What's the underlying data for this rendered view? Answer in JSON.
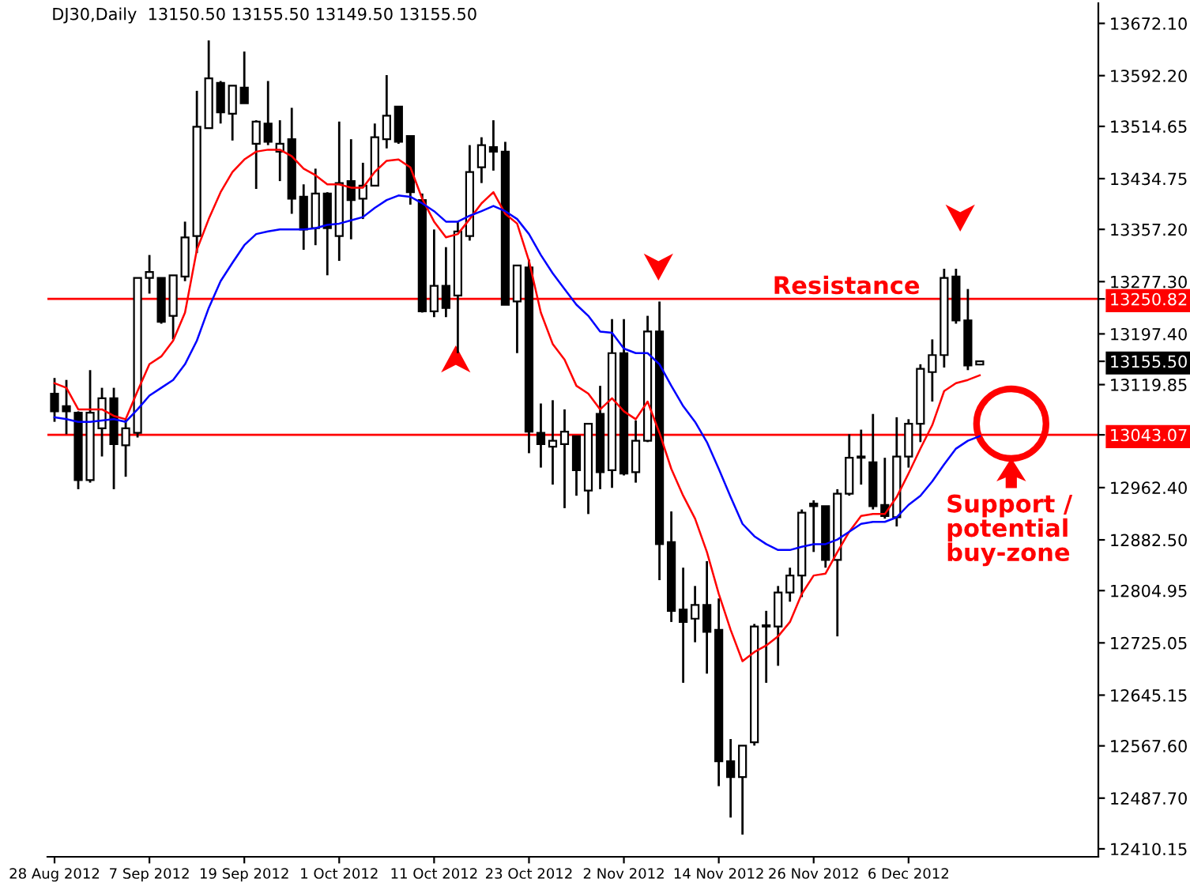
{
  "chart_data": {
    "type": "candlestick",
    "title": "DJ30,Daily  13150.50 13155.50 13149.50 13155.50",
    "categories": [
      "28 Aug 2012",
      null,
      null,
      null,
      null,
      null,
      null,
      null,
      "7 Sep 2012",
      null,
      null,
      null,
      null,
      null,
      null,
      null,
      "19 Sep 2012",
      null,
      null,
      null,
      null,
      null,
      null,
      null,
      "1 Oct 2012",
      null,
      null,
      null,
      null,
      null,
      null,
      null,
      "11 Oct 2012",
      null,
      null,
      null,
      null,
      null,
      null,
      null,
      "23 Oct 2012",
      null,
      null,
      null,
      null,
      null,
      null,
      null,
      "2 Nov 2012",
      null,
      null,
      null,
      null,
      null,
      null,
      null,
      "14 Nov 2012",
      null,
      null,
      null,
      null,
      null,
      null,
      null,
      "26 Nov 2012",
      null,
      null,
      null,
      null,
      null,
      null,
      null,
      "6 Dec 2012",
      null,
      null,
      null,
      null,
      null,
      null
    ],
    "ohlc": [
      [
        13106,
        13130,
        13063,
        13079
      ],
      [
        13087,
        13127,
        13044,
        13079
      ],
      [
        13077,
        13079,
        12960,
        12974
      ],
      [
        12974,
        13142,
        12970,
        13077
      ],
      [
        13053,
        13115,
        13010,
        13099
      ],
      [
        13099,
        13115,
        12960,
        13029
      ],
      [
        13027,
        13067,
        12979,
        13053
      ],
      [
        13046,
        13283,
        13039,
        13283
      ],
      [
        13283,
        13318,
        13259,
        13292
      ],
      [
        13283,
        13283,
        13213,
        13216
      ],
      [
        13225,
        13287,
        13189,
        13287
      ],
      [
        13285,
        13369,
        13278,
        13345
      ],
      [
        13347,
        13569,
        13321,
        13514
      ],
      [
        13512,
        13646,
        13512,
        13588
      ],
      [
        13581,
        13584,
        13519,
        13536
      ],
      [
        13534,
        13577,
        13493,
        13577
      ],
      [
        13574,
        13629,
        13550,
        13550
      ],
      [
        13488,
        13524,
        13419,
        13522
      ],
      [
        13519,
        13584,
        13486,
        13491
      ],
      [
        13476,
        13524,
        13431,
        13488
      ],
      [
        13495,
        13543,
        13381,
        13404
      ],
      [
        13407,
        13426,
        13326,
        13357
      ],
      [
        13359,
        13450,
        13333,
        13412
      ],
      [
        13412,
        13414,
        13287,
        13359
      ],
      [
        13347,
        13522,
        13309,
        13428
      ],
      [
        13431,
        13495,
        13342,
        13402
      ],
      [
        13404,
        13459,
        13373,
        13424
      ],
      [
        13424,
        13519,
        13424,
        13498
      ],
      [
        13495,
        13593,
        13481,
        13531
      ],
      [
        13545,
        13545,
        13488,
        13491
      ],
      [
        13500,
        13500,
        13395,
        13414
      ],
      [
        13402,
        13412,
        13230,
        13232
      ],
      [
        13232,
        13357,
        13223,
        13271
      ],
      [
        13271,
        13330,
        13223,
        13237
      ],
      [
        13256,
        13369,
        13168,
        13354
      ],
      [
        13347,
        13486,
        13340,
        13445
      ],
      [
        13452,
        13498,
        13428,
        13486
      ],
      [
        13483,
        13524,
        13447,
        13476
      ],
      [
        13476,
        13491,
        13242,
        13242
      ],
      [
        13247,
        13302,
        13168,
        13302
      ],
      [
        13299,
        13311,
        13015,
        13048
      ],
      [
        13046,
        13091,
        12993,
        13029
      ],
      [
        13025,
        13096,
        12967,
        13034
      ],
      [
        13029,
        13082,
        12931,
        13048
      ],
      [
        13041,
        13041,
        12950,
        12989
      ],
      [
        12958,
        13060,
        12922,
        13060
      ],
      [
        13075,
        13118,
        12960,
        12986
      ],
      [
        12989,
        13220,
        12962,
        13168
      ],
      [
        13168,
        13220,
        12981,
        12984
      ],
      [
        12986,
        13065,
        12970,
        13034
      ],
      [
        13034,
        13225,
        13032,
        13201
      ],
      [
        13201,
        13247,
        12821,
        12876
      ],
      [
        12879,
        12926,
        12757,
        12774
      ],
      [
        12776,
        12840,
        12664,
        12757
      ],
      [
        12762,
        12812,
        12726,
        12783
      ],
      [
        12783,
        12850,
        12678,
        12742
      ],
      [
        12745,
        12793,
        12506,
        12544
      ],
      [
        12544,
        12578,
        12458,
        12520
      ],
      [
        12520,
        12568,
        12432,
        12568
      ],
      [
        12573,
        12754,
        12568,
        12750
      ],
      [
        12750,
        12774,
        12664,
        12752
      ],
      [
        12750,
        12812,
        12690,
        12802
      ],
      [
        12802,
        12840,
        12788,
        12828
      ],
      [
        12828,
        12929,
        12795,
        12924
      ],
      [
        12938,
        12943,
        12864,
        12934
      ],
      [
        12934,
        12934,
        12840,
        12852
      ],
      [
        12852,
        12960,
        12735,
        12953
      ],
      [
        12953,
        13044,
        12950,
        13008
      ],
      [
        13008,
        13051,
        12967,
        13010
      ],
      [
        13001,
        13075,
        12929,
        12934
      ],
      [
        12936,
        13008,
        12915,
        12919
      ],
      [
        12917,
        13070,
        12903,
        13010
      ],
      [
        13010,
        13067,
        12993,
        13060
      ],
      [
        13060,
        13151,
        13032,
        13144
      ],
      [
        13139,
        13189,
        13094,
        13165
      ],
      [
        13165,
        13297,
        13146,
        13283
      ],
      [
        13285,
        13297,
        13213,
        13218
      ],
      [
        13218,
        13266,
        13142,
        13149
      ],
      [
        13150.5,
        13155.5,
        13149.5,
        13155.5
      ]
    ],
    "colors": [
      "#000000",
      "#000000",
      "#000000",
      "#ffffff",
      "#ffffff",
      "#000000",
      "#ffffff",
      "#ffffff",
      "#ffffff",
      "#000000",
      "#ffffff",
      "#ffffff",
      "#ffffff",
      "#ffffff",
      "#000000",
      "#ffffff",
      "#000000",
      "#ffffff",
      "#000000",
      "#ffffff",
      "#000000",
      "#000000",
      "#ffffff",
      "#000000",
      "#ffffff",
      "#000000",
      "#ffffff",
      "#ffffff",
      "#ffffff",
      "#000000",
      "#000000",
      "#000000",
      "#ffffff",
      "#000000",
      "#ffffff",
      "#ffffff",
      "#ffffff",
      "#000000",
      "#000000",
      "#ffffff",
      "#000000",
      "#000000",
      "#ffffff",
      "#ffffff",
      "#000000",
      "#ffffff",
      "#000000",
      "#ffffff",
      "#000000",
      "#ffffff",
      "#ffffff",
      "#000000",
      "#000000",
      "#000000",
      "#ffffff",
      "#000000",
      "#000000",
      "#000000",
      "#ffffff",
      "#ffffff",
      "#ffffff",
      "#ffffff",
      "#ffffff",
      "#ffffff",
      "#000000",
      "#000000",
      "#ffffff",
      "#ffffff",
      "#ffffff",
      "#000000",
      "#000000",
      "#ffffff",
      "#ffffff",
      "#ffffff",
      "#ffffff",
      "#ffffff",
      "#000000",
      "#000000",
      "#ffffff"
    ],
    "series": [
      {
        "type": "line",
        "color": "#ff0000",
        "values": [
          13122,
          13115,
          13082,
          13082,
          13082,
          13072,
          13067,
          13110,
          13151,
          13163,
          13187,
          13230,
          13326,
          13373,
          13414,
          13445,
          13464,
          13476,
          13479,
          13479,
          13469,
          13450,
          13440,
          13426,
          13426,
          13421,
          13421,
          13445,
          13462,
          13464,
          13452,
          13404,
          13369,
          13345,
          13350,
          13373,
          13397,
          13414,
          13381,
          13366,
          13309,
          13230,
          13182,
          13158,
          13118,
          13106,
          13082,
          13099,
          13079,
          13067,
          13094,
          13046,
          12991,
          12950,
          12915,
          12864,
          12800,
          12745,
          12697,
          12711,
          12721,
          12735,
          12757,
          12800,
          12828,
          12831,
          12864,
          12895,
          12919,
          12922,
          12922,
          12948,
          12984,
          13022,
          13058,
          13110,
          13122,
          13127,
          13134
        ]
      },
      {
        "type": "line",
        "color": "#0000ff",
        "values": [
          13070,
          13067,
          13063,
          13063,
          13065,
          13067,
          13063,
          13082,
          13103,
          13115,
          13127,
          13151,
          13187,
          13237,
          13278,
          13306,
          13333,
          13350,
          13354,
          13357,
          13357,
          13357,
          13359,
          13364,
          13366,
          13371,
          13376,
          13390,
          13402,
          13409,
          13407,
          13397,
          13385,
          13369,
          13369,
          13378,
          13385,
          13393,
          13385,
          13373,
          13350,
          13318,
          13290,
          13266,
          13242,
          13225,
          13201,
          13199,
          13175,
          13168,
          13168,
          13151,
          13118,
          13087,
          13063,
          13032,
          12991,
          12948,
          12907,
          12888,
          12876,
          12867,
          12867,
          12872,
          12876,
          12876,
          12883,
          12895,
          12907,
          12910,
          12910,
          12917,
          12936,
          12950,
          12972,
          12998,
          13022,
          13034,
          13041
        ]
      }
    ],
    "ylim": [
      12398,
      13703
    ],
    "yticks": [
      {
        "value": 12410.15,
        "label": "12410.15"
      },
      {
        "value": 12487.7,
        "label": "12487.70"
      },
      {
        "value": 12567.6,
        "label": "12567.60"
      },
      {
        "value": 12645.15,
        "label": "12645.15"
      },
      {
        "value": 12725.05,
        "label": "12725.05"
      },
      {
        "value": 12804.95,
        "label": "12804.95"
      },
      {
        "value": 12882.5,
        "label": "12882.50"
      },
      {
        "value": 12962.4,
        "label": "12962.40"
      },
      {
        "value": 13043.07,
        "label": "13043.07"
      },
      {
        "value": 13119.85,
        "label": "13119.85"
      },
      {
        "value": 13155.5,
        "label": "13155.50"
      },
      {
        "value": 13197.4,
        "label": "13197.40"
      },
      {
        "value": 13250.82,
        "label": "13250.82"
      },
      {
        "value": 13277.3,
        "label": "13277.30"
      },
      {
        "value": 13357.2,
        "label": "13357.20"
      },
      {
        "value": 13434.75,
        "label": "13434.75"
      },
      {
        "value": 13514.65,
        "label": "13514.65"
      },
      {
        "value": 13592.2,
        "label": "13592.20"
      },
      {
        "value": 13672.1,
        "label": "13672.10"
      }
    ],
    "ref_lines": [
      {
        "axis": "y",
        "value": 13250.82,
        "label": "Resistance",
        "color": "#ff0000"
      },
      {
        "axis": "y",
        "value": 13043.07,
        "color": "#ff0000"
      }
    ],
    "annotations": [
      "Support /\npotential\nbuy-zone"
    ],
    "grid": false
  }
}
